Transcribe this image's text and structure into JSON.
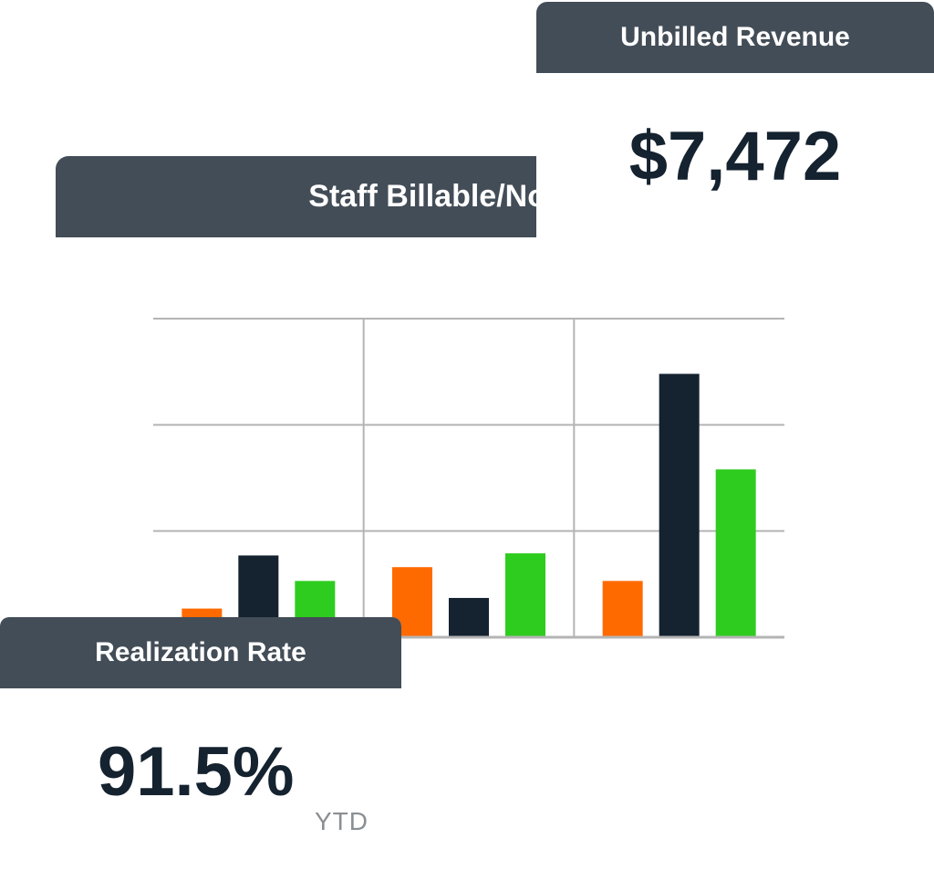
{
  "colors": {
    "header_bg": "#434d57",
    "value_text": "#15222f",
    "orange": "#ff6a00",
    "navy": "#15222f",
    "green": "#2ecc1f",
    "grid": "#b4b4b4"
  },
  "unbilled": {
    "title": "Unbilled Revenue",
    "value": "$7,472"
  },
  "staff_chart": {
    "title": "Staff Billable/NonBi"
  },
  "realization": {
    "title": "Realization Rate",
    "value": "91.5%",
    "period": "YTD"
  },
  "chart_data": {
    "type": "bar",
    "title": "Staff Billable/NonBi",
    "categories": [
      "",
      "",
      ""
    ],
    "series": [
      {
        "color": "#ff6a00",
        "values": [
          0.27,
          0.66,
          0.53
        ]
      },
      {
        "color": "#15222f",
        "values": [
          0.77,
          0.37,
          2.48
        ]
      },
      {
        "color": "#2ecc1f",
        "values": [
          0.53,
          0.79,
          1.58
        ]
      }
    ],
    "ylim": [
      0,
      3
    ],
    "grid": true,
    "xlabel": "",
    "ylabel": ""
  }
}
